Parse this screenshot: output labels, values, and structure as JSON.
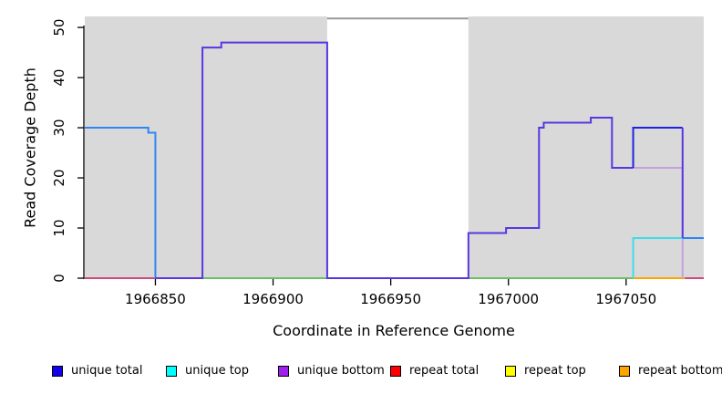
{
  "colors": {
    "shaded_region": "#d9d9d9",
    "masked_line": "#999999",
    "axis": "#000000",
    "tick_label": "#000000"
  },
  "chart_data": {
    "type": "line",
    "title": "",
    "xlabel": "Coordinate in Reference Genome",
    "ylabel": "Read Coverage Depth",
    "xlim": [
      1966820,
      1967083
    ],
    "ylim": [
      0,
      52.2
    ],
    "grid": false,
    "x_ticks": [
      1966850,
      1966900,
      1966950,
      1967000,
      1967050
    ],
    "y_ticks": [
      0,
      10,
      20,
      30,
      40,
      50
    ],
    "shaded_regions": [
      [
        1966820,
        1966923
      ],
      [
        1966983,
        1967083
      ]
    ],
    "masked_region": {
      "start": 1966923,
      "end": 1966983,
      "line_depth": 51.8
    },
    "legend": [
      {
        "label": "unique total",
        "color": "#1400f0"
      },
      {
        "label": "unique top",
        "color": "#00ffff"
      },
      {
        "label": "unique bottom",
        "color": "#a020f0"
      },
      {
        "label": "repeat total",
        "color": "#ff0000"
      },
      {
        "label": "repeat top",
        "color": "#ffff00"
      },
      {
        "label": "repeat bottom",
        "color": "#ffa500"
      }
    ],
    "series": [
      {
        "name": "repeat-total-zero-left",
        "color": "#d0487e",
        "points": [
          [
            1966820,
            0
          ],
          [
            1966850,
            0
          ]
        ]
      },
      {
        "name": "zero-line-left-shaded",
        "color": "#6abf69",
        "points": [
          [
            1966870,
            0
          ],
          [
            1966923,
            0
          ]
        ]
      },
      {
        "name": "zero-line-right-shaded",
        "color": "#6abf69",
        "points": [
          [
            1966983,
            0
          ],
          [
            1967053,
            0
          ]
        ]
      },
      {
        "name": "repeat-bottom-zero",
        "color": "#ffa500",
        "points": [
          [
            1967053,
            0
          ],
          [
            1967075,
            0
          ]
        ]
      },
      {
        "name": "repeat-total-zero-right",
        "color": "#d0487e",
        "points": [
          [
            1967075,
            0
          ],
          [
            1967083,
            0
          ]
        ]
      },
      {
        "name": "unique-bottom-right-tail",
        "color": "#c79fde",
        "points": [
          [
            1967053,
            22
          ],
          [
            1967074,
            22
          ],
          [
            1967074,
            0
          ]
        ]
      },
      {
        "name": "unique-top-box",
        "color": "#40dce8",
        "points": [
          [
            1967053,
            0
          ],
          [
            1967053,
            8
          ],
          [
            1967074,
            8
          ]
        ]
      },
      {
        "name": "unique-total-left",
        "color": "#2e86f5",
        "points": [
          [
            1966820,
            30
          ],
          [
            1966847,
            30
          ],
          [
            1966847,
            29
          ],
          [
            1966850,
            29
          ],
          [
            1966850,
            0
          ]
        ]
      },
      {
        "name": "unique-total-right-tail",
        "color": "#2e86f5",
        "points": [
          [
            1967074,
            8
          ],
          [
            1967083,
            8
          ]
        ]
      },
      {
        "name": "unique-bottom-main",
        "color": "#5936e3",
        "points": [
          [
            1966850,
            0
          ],
          [
            1966870,
            0
          ],
          [
            1966870,
            46
          ],
          [
            1966878,
            46
          ],
          [
            1966878,
            47
          ],
          [
            1966923,
            47
          ],
          [
            1966923,
            0
          ],
          [
            1966983,
            0
          ],
          [
            1966983,
            9
          ],
          [
            1966999,
            9
          ],
          [
            1966999,
            10
          ],
          [
            1967013,
            10
          ],
          [
            1967013,
            30
          ],
          [
            1967015,
            30
          ],
          [
            1967015,
            31
          ],
          [
            1967035,
            31
          ],
          [
            1967035,
            32
          ],
          [
            1967044,
            32
          ],
          [
            1967044,
            22
          ],
          [
            1967053,
            22
          ]
        ]
      },
      {
        "name": "unique-total-box",
        "color": "#2121e0",
        "points": [
          [
            1967053,
            22
          ],
          [
            1967053,
            30
          ],
          [
            1967074,
            30
          ]
        ]
      },
      {
        "name": "unique-bottom-right-vertical",
        "color": "#5936e3",
        "points": [
          [
            1967074,
            30
          ],
          [
            1967074,
            8
          ]
        ]
      }
    ]
  }
}
